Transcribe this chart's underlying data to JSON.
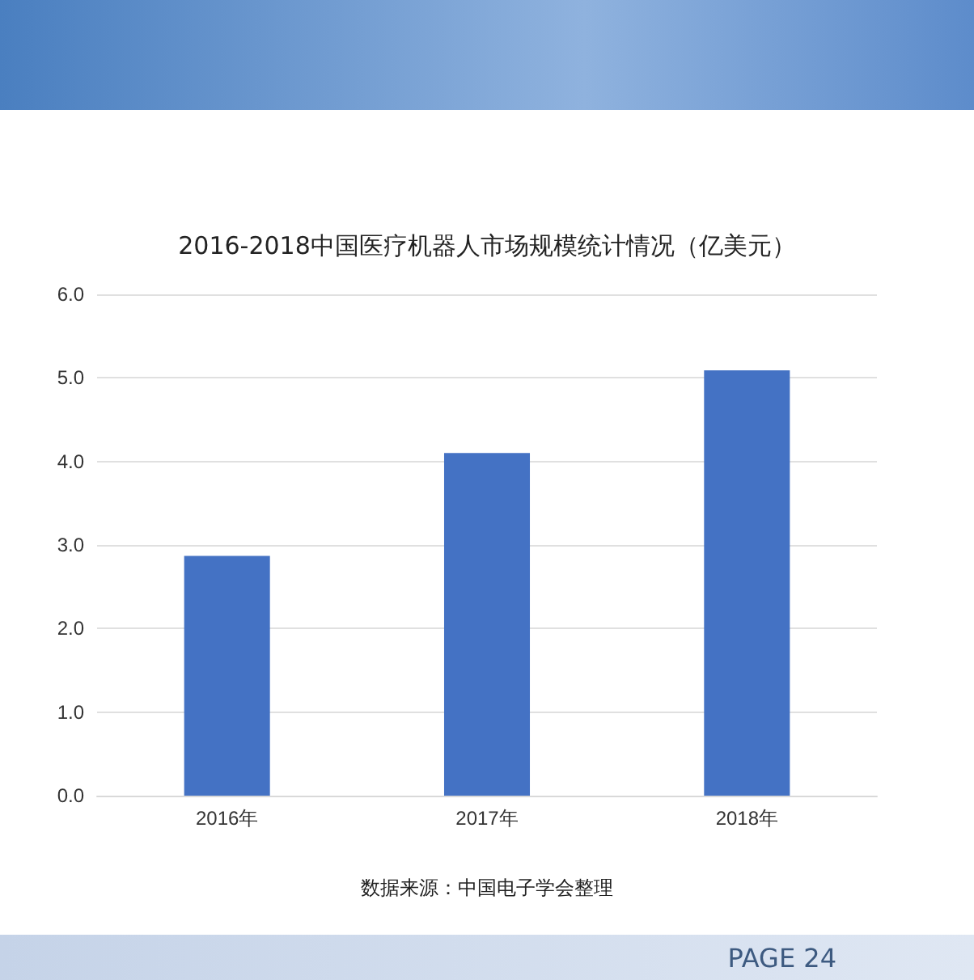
{
  "chart_data": {
    "type": "bar",
    "title": "2016-2018中国医疗机器人市场规模统计情况（亿美元）",
    "categories": [
      "2016年",
      "2017年",
      "2018年"
    ],
    "values": [
      2.87,
      4.1,
      5.09
    ],
    "color": "#4472c4",
    "ylim": [
      0,
      6
    ],
    "yticks": [
      {
        "value": 0,
        "label": "0.0"
      },
      {
        "value": 1,
        "label": "1.0"
      },
      {
        "value": 2,
        "label": "2.0"
      },
      {
        "value": 3,
        "label": "3.0"
      },
      {
        "value": 4,
        "label": "4.0"
      },
      {
        "value": 5,
        "label": "5.0"
      },
      {
        "value": 6,
        "label": "6.0"
      }
    ],
    "grid": "y",
    "annotations": [
      "数据来源：中国电子学会整理",
      "PAGE 24"
    ]
  }
}
